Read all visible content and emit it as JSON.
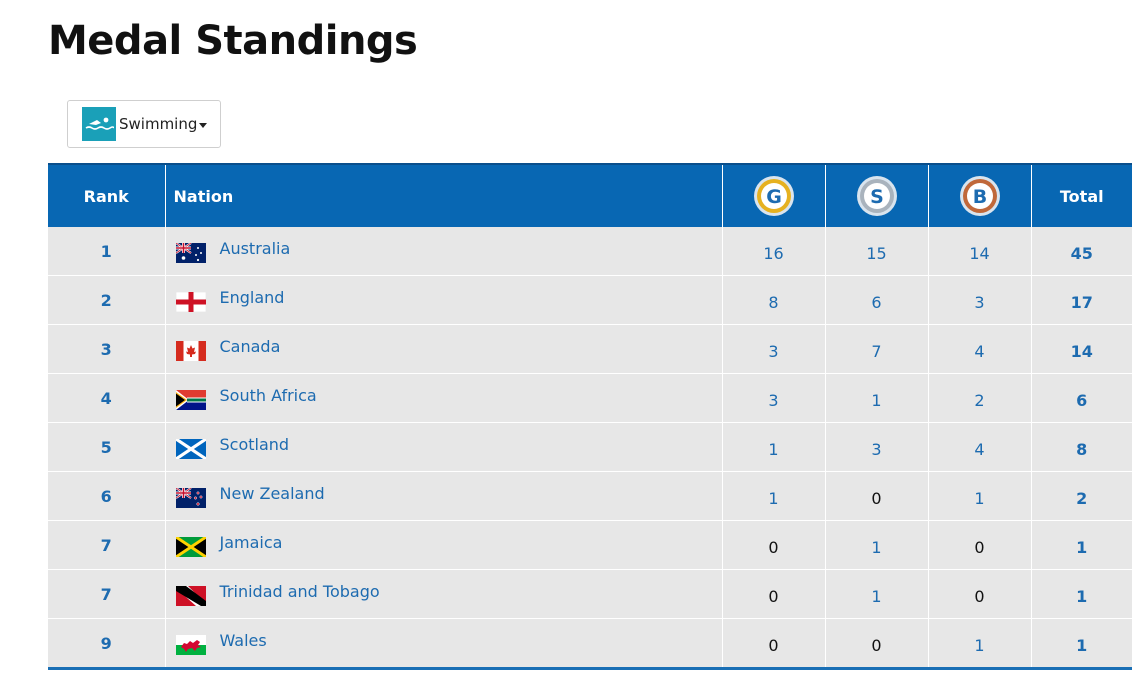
{
  "page": {
    "title": "Medal Standings"
  },
  "filter": {
    "sport": "Swimming",
    "icon": "swimmer-icon"
  },
  "colors": {
    "header_bg": "#0867b3",
    "row_bg": "#e7e7e7",
    "link": "#1d6bb0",
    "gold": "#e6b120",
    "silver": "#a9b3bd",
    "bronze": "#c0683a"
  },
  "table": {
    "headers": {
      "rank": "Rank",
      "nation": "Nation",
      "gold": "G",
      "silver": "S",
      "bronze": "B",
      "total": "Total"
    },
    "rows": [
      {
        "rank": "1",
        "nation": "Australia",
        "flag": "australia",
        "gold": "16",
        "silver": "15",
        "bronze": "14",
        "total": "45"
      },
      {
        "rank": "2",
        "nation": "England",
        "flag": "england",
        "gold": "8",
        "silver": "6",
        "bronze": "3",
        "total": "17"
      },
      {
        "rank": "3",
        "nation": "Canada",
        "flag": "canada",
        "gold": "3",
        "silver": "7",
        "bronze": "4",
        "total": "14"
      },
      {
        "rank": "4",
        "nation": "South Africa",
        "flag": "south-africa",
        "gold": "3",
        "silver": "1",
        "bronze": "2",
        "total": "6"
      },
      {
        "rank": "5",
        "nation": "Scotland",
        "flag": "scotland",
        "gold": "1",
        "silver": "3",
        "bronze": "4",
        "total": "8"
      },
      {
        "rank": "6",
        "nation": "New Zealand",
        "flag": "new-zealand",
        "gold": "1",
        "silver": "0",
        "bronze": "1",
        "total": "2"
      },
      {
        "rank": "7",
        "nation": "Jamaica",
        "flag": "jamaica",
        "gold": "0",
        "silver": "1",
        "bronze": "0",
        "total": "1"
      },
      {
        "rank": "7",
        "nation": "Trinidad and Tobago",
        "flag": "trinidad-and-tobago",
        "gold": "0",
        "silver": "1",
        "bronze": "0",
        "total": "1"
      },
      {
        "rank": "9",
        "nation": "Wales",
        "flag": "wales",
        "gold": "0",
        "silver": "0",
        "bronze": "1",
        "total": "1"
      }
    ]
  }
}
